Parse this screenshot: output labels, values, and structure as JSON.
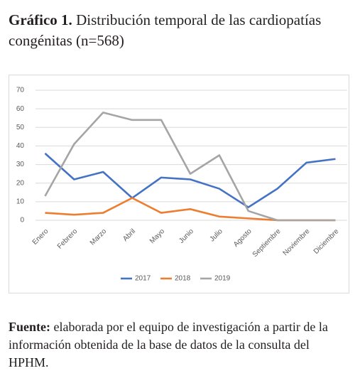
{
  "figure_label": "Gráfico 1.",
  "chart_data": {
    "type": "line",
    "title": "Distribución temporal de las cardiopatías congénitas (n=568)",
    "categories": [
      "Enero",
      "Febrero",
      "Marzo",
      "Abril",
      "Mayo",
      "Junio",
      "Julio",
      "Agosto",
      "Septiembre",
      "Noviembre",
      "Diciembre"
    ],
    "series": [
      {
        "name": "2017",
        "color": "#4472c4",
        "values": [
          36,
          22,
          26,
          12,
          23,
          22,
          17,
          7,
          17,
          31,
          33
        ]
      },
      {
        "name": "2018",
        "color": "#ed7d31",
        "values": [
          4,
          3,
          4,
          12,
          4,
          6,
          2,
          1,
          0,
          0,
          0
        ]
      },
      {
        "name": "2019",
        "color": "#a5a5a5",
        "values": [
          13,
          41,
          58,
          54,
          54,
          25,
          35,
          5,
          0,
          0,
          0
        ]
      }
    ],
    "ylim": [
      0,
      70
    ],
    "yticks": [
      0,
      10,
      20,
      30,
      40,
      50,
      60,
      70
    ],
    "grid": true,
    "legend": "bottom"
  },
  "source": {
    "label": "Fuente:",
    "text": "elaborada por el equipo de investigación a partir de la información obtenida de la base de datos de la consulta del HPHM."
  }
}
